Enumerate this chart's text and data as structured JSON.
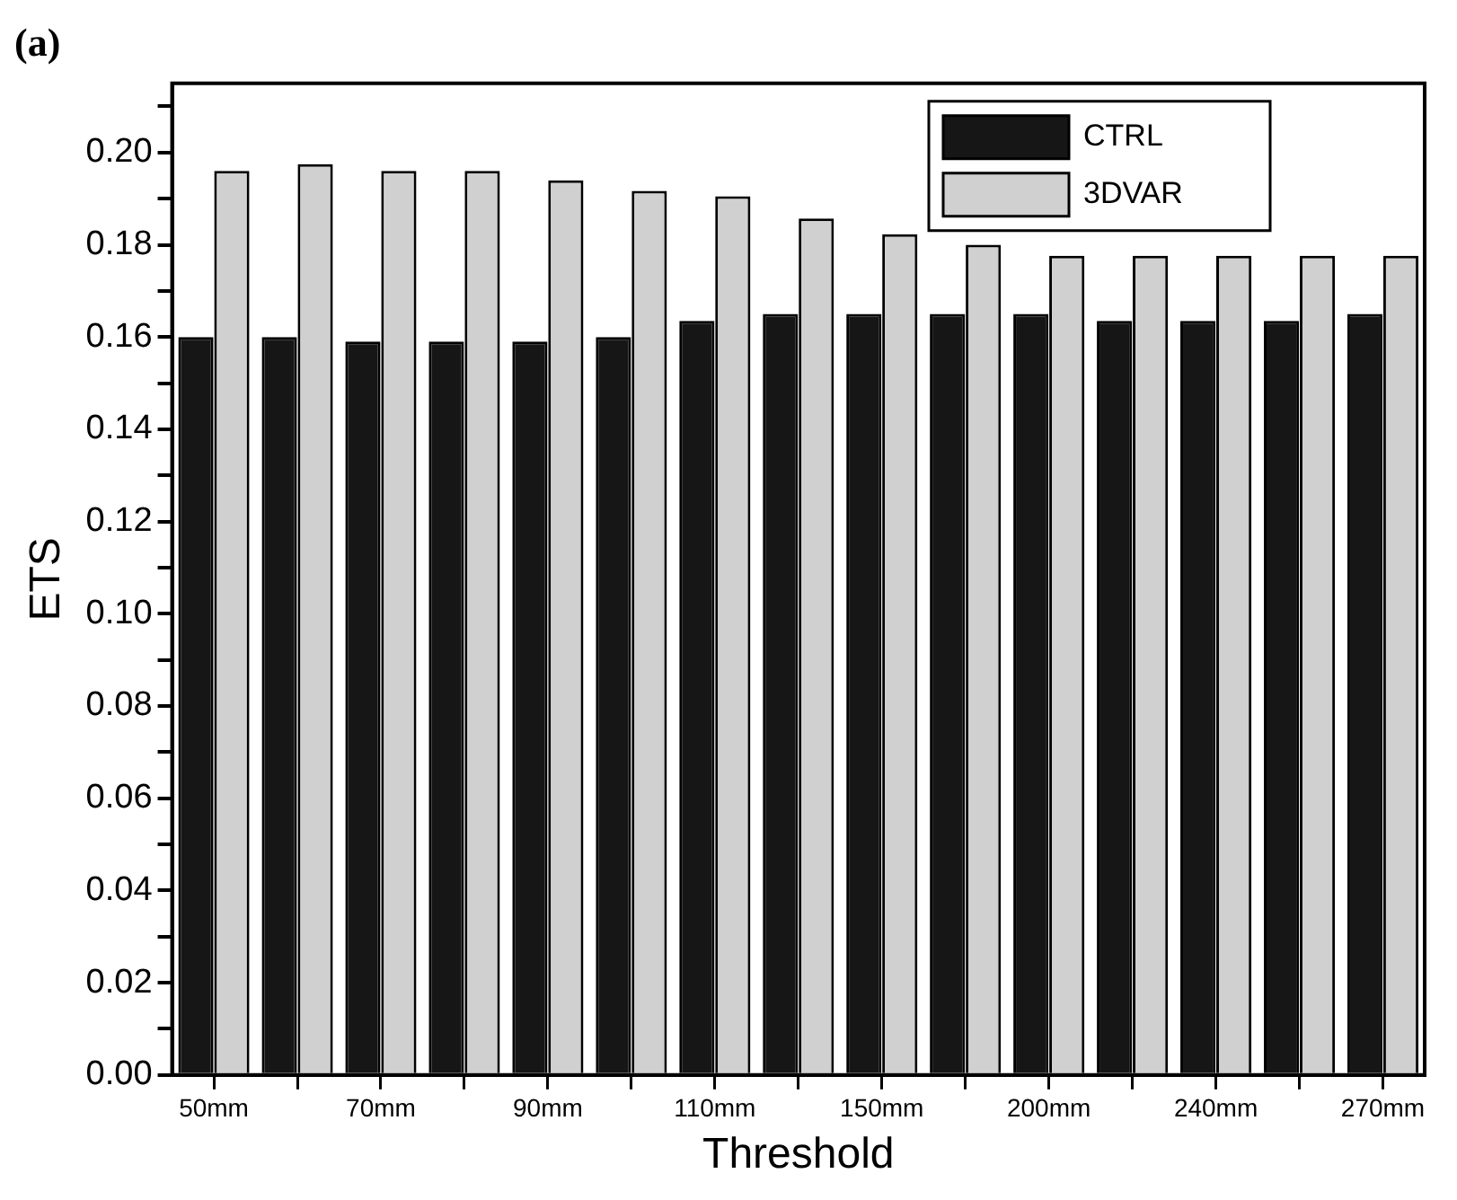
{
  "chart_data": {
    "type": "bar",
    "title": "(a)",
    "xlabel": "Threshold",
    "ylabel": "ETS",
    "categories": [
      "50mm",
      null,
      "70mm",
      null,
      "90mm",
      null,
      "110mm",
      null,
      "150mm",
      null,
      "200mm",
      null,
      "240mm",
      null,
      "270mm"
    ],
    "series": [
      {
        "name": "CTRL",
        "color": "#161616",
        "values": [
          0.16,
          0.16,
          0.159,
          0.159,
          0.159,
          0.16,
          0.1635,
          0.165,
          0.165,
          0.165,
          0.165,
          0.1635,
          0.1635,
          0.1635,
          0.165
        ]
      },
      {
        "name": "3DVAR",
        "color": "#d0d0d0",
        "values": [
          0.196,
          0.1975,
          0.196,
          0.196,
          0.194,
          0.1917,
          0.1905,
          0.1857,
          0.1823,
          0.18,
          0.1776,
          0.1776,
          0.1776,
          0.1776,
          0.1776
        ]
      }
    ],
    "ylim": [
      0,
      0.215
    ],
    "yticks": [
      {
        "value": 0,
        "label": "0.00"
      },
      {
        "value": 0.01,
        "label": null
      },
      0.02,
      {
        "value": 0.03,
        "label": null
      },
      0.04,
      {
        "value": 0.05,
        "label": null
      },
      0.06,
      {
        "value": 0.07,
        "label": null
      },
      0.08,
      {
        "value": 0.09,
        "label": null
      },
      {
        "value": 0.1,
        "label": "0.10"
      },
      {
        "value": 0.11,
        "label": null
      },
      0.12,
      {
        "value": 0.13,
        "label": null
      },
      0.14,
      {
        "value": 0.15,
        "label": null
      },
      0.16,
      {
        "value": 0.17,
        "label": null
      },
      0.18,
      {
        "value": 0.19,
        "label": null
      },
      {
        "value": 0.2,
        "label": "0.20"
      },
      {
        "value": 0.21,
        "label": null
      }
    ],
    "grid": false,
    "legend": "top right"
  }
}
